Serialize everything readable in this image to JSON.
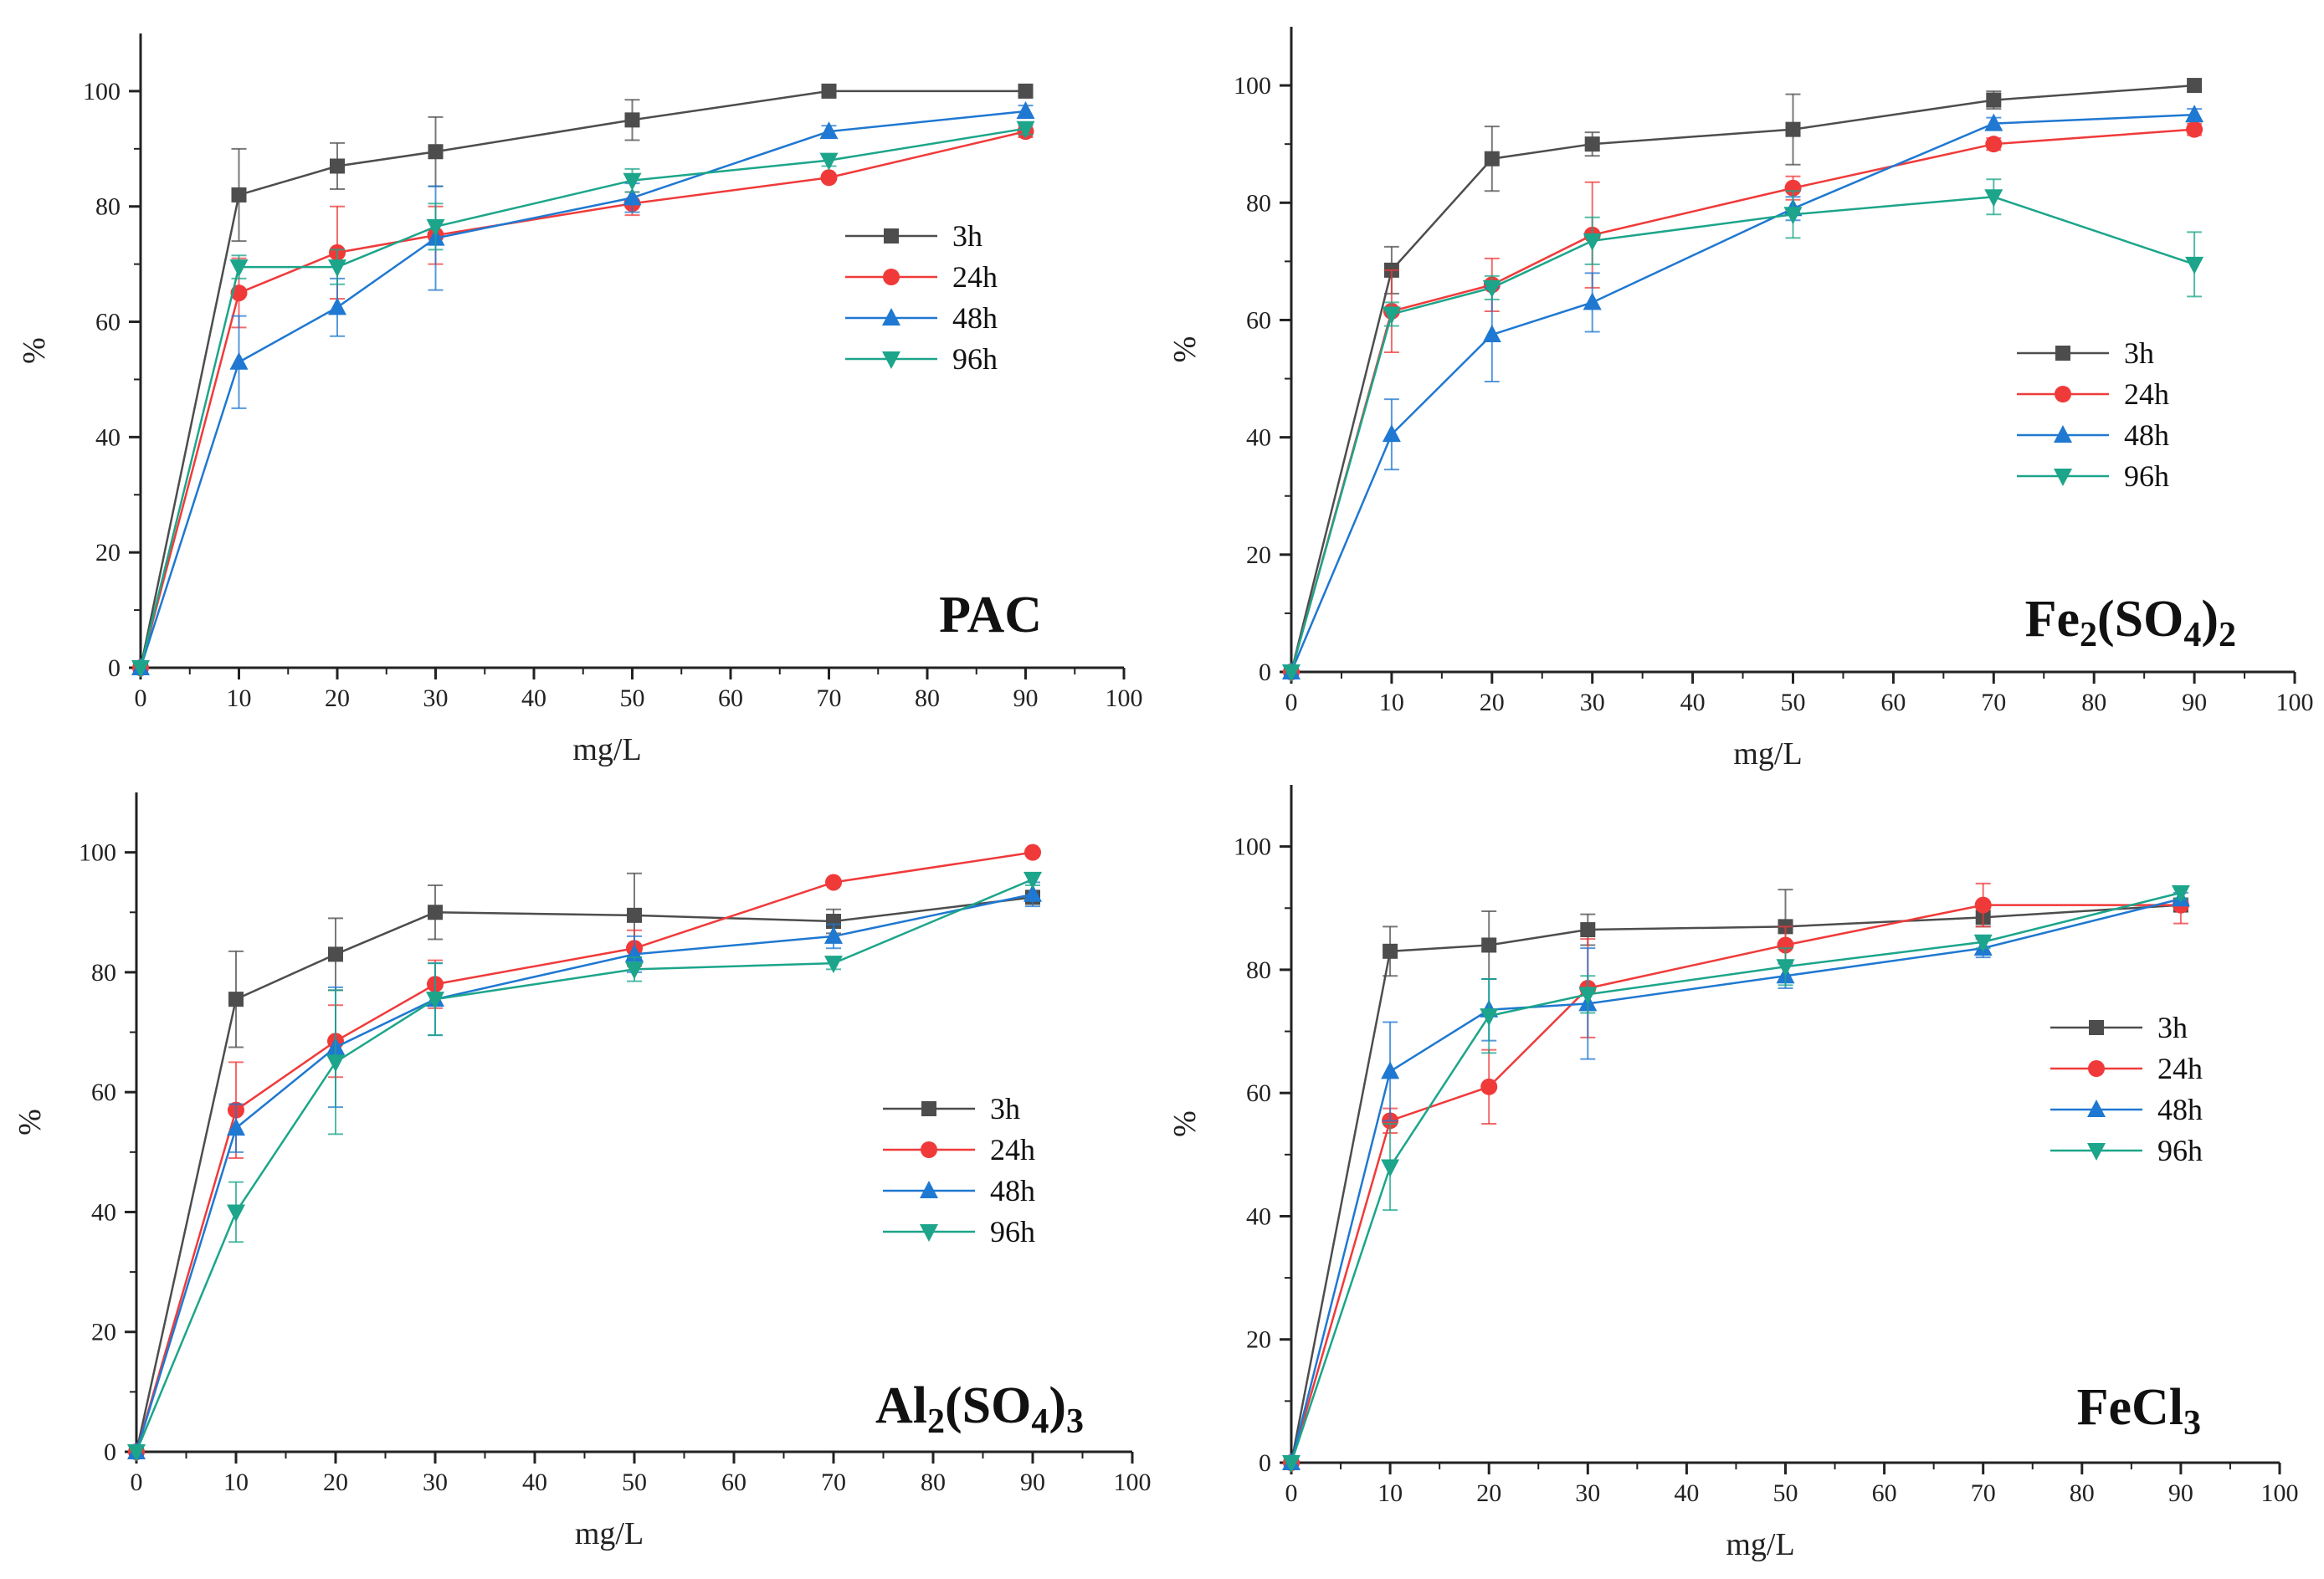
{
  "colors": {
    "3h": "#4d4d4d",
    "24h": "#f03a3a",
    "48h": "#1f78d1",
    "96h": "#1ca58a",
    "axis": "#222222"
  },
  "chart_data": [
    {
      "type": "line",
      "title": "PAC",
      "xlabel": "mg/L",
      "ylabel": "%",
      "xlim": [
        0,
        100
      ],
      "ylim": [
        0,
        110
      ],
      "xticks": [
        0,
        10,
        20,
        30,
        40,
        50,
        60,
        70,
        80,
        90,
        100
      ],
      "yticks": [
        0,
        20,
        40,
        60,
        80,
        100
      ],
      "x": [
        0,
        10,
        20,
        30,
        50,
        70,
        90
      ],
      "legend_position": "middle-right",
      "series": [
        {
          "name": "3h",
          "marker": "square",
          "values": [
            0,
            82,
            87,
            89.5,
            95,
            100,
            100
          ],
          "errors": [
            0,
            8,
            4,
            6,
            3.5,
            0,
            0
          ]
        },
        {
          "name": "24h",
          "marker": "circle",
          "values": [
            0,
            65,
            72,
            75,
            80.5,
            85,
            93
          ],
          "errors": [
            0,
            6,
            8,
            5,
            2,
            0,
            1
          ]
        },
        {
          "name": "48h",
          "marker": "triangle-up",
          "values": [
            0,
            53,
            62.5,
            74.5,
            81.5,
            93,
            96.5
          ],
          "errors": [
            0,
            8,
            5,
            9,
            2.5,
            1,
            1
          ]
        },
        {
          "name": "96h",
          "marker": "triangle-down",
          "values": [
            0,
            69.5,
            69.5,
            76.5,
            84.5,
            88,
            93.5
          ],
          "errors": [
            0,
            2,
            3,
            4,
            2,
            1,
            1
          ]
        }
      ]
    },
    {
      "type": "line",
      "title": "Fe2(SO4)2",
      "title_parts": [
        "Fe",
        "2",
        "(SO",
        "4",
        ")",
        "2"
      ],
      "xlabel": "mg/L",
      "ylabel": "%",
      "xlim": [
        0,
        100
      ],
      "ylim": [
        0,
        110
      ],
      "xticks": [
        0,
        10,
        20,
        30,
        40,
        50,
        60,
        70,
        80,
        90,
        100
      ],
      "yticks": [
        0,
        20,
        40,
        60,
        80,
        100
      ],
      "x": [
        0,
        10,
        20,
        30,
        50,
        70,
        90
      ],
      "legend_position": "right",
      "series": [
        {
          "name": "3h",
          "marker": "square",
          "values": [
            0,
            68.5,
            87.5,
            90,
            92.5,
            97.5,
            100
          ],
          "errors": [
            0,
            4,
            5.5,
            2,
            6,
            1.5,
            0
          ]
        },
        {
          "name": "24h",
          "marker": "circle",
          "values": [
            0,
            61.5,
            66,
            74.5,
            82.5,
            90,
            92.5
          ],
          "errors": [
            0,
            7,
            4.5,
            9,
            2,
            1,
            1
          ]
        },
        {
          "name": "48h",
          "marker": "triangle-up",
          "values": [
            0,
            40.5,
            57.5,
            63,
            79,
            93.5,
            95
          ],
          "errors": [
            0,
            6,
            8,
            5,
            2,
            1,
            1
          ]
        },
        {
          "name": "96h",
          "marker": "triangle-down",
          "values": [
            0,
            61,
            65.5,
            73.5,
            78,
            81,
            69.5
          ],
          "errors": [
            0,
            2,
            2,
            4,
            4,
            3,
            5.5
          ]
        }
      ]
    },
    {
      "type": "line",
      "title": "Al2(SO4)3",
      "title_parts": [
        "Al",
        "2",
        "(SO",
        "4",
        ")",
        "3"
      ],
      "xlabel": "mg/L",
      "ylabel": "%",
      "xlim": [
        0,
        100
      ],
      "ylim": [
        0,
        110
      ],
      "xticks": [
        0,
        10,
        20,
        30,
        40,
        50,
        60,
        70,
        80,
        90,
        100
      ],
      "yticks": [
        0,
        20,
        40,
        60,
        80,
        100
      ],
      "x": [
        0,
        10,
        20,
        30,
        50,
        70,
        90
      ],
      "legend_position": "right",
      "series": [
        {
          "name": "3h",
          "marker": "square",
          "values": [
            0,
            75.5,
            83,
            90,
            89.5,
            88.5,
            92.5
          ],
          "errors": [
            0,
            8,
            6,
            4.5,
            7,
            2,
            1
          ]
        },
        {
          "name": "24h",
          "marker": "circle",
          "values": [
            0,
            57,
            68.5,
            78,
            84,
            95,
            100
          ],
          "errors": [
            0,
            8,
            6,
            4,
            3,
            0,
            0
          ]
        },
        {
          "name": "48h",
          "marker": "triangle-up",
          "values": [
            0,
            54,
            67.5,
            75.5,
            83,
            86,
            93
          ],
          "errors": [
            0,
            4,
            10,
            6,
            3,
            2,
            2
          ]
        },
        {
          "name": "96h",
          "marker": "triangle-down",
          "values": [
            0,
            40,
            65,
            75.5,
            80.5,
            81.5,
            95.5
          ],
          "errors": [
            0,
            5,
            12,
            6,
            2,
            1,
            1
          ]
        }
      ]
    },
    {
      "type": "line",
      "title": "FeCl3",
      "title_parts": [
        "FeCl",
        "3"
      ],
      "xlabel": "mg/L",
      "ylabel": "%",
      "xlim": [
        0,
        100
      ],
      "ylim": [
        0,
        110
      ],
      "xticks": [
        0,
        10,
        20,
        30,
        40,
        50,
        60,
        70,
        80,
        90,
        100
      ],
      "yticks": [
        0,
        20,
        40,
        60,
        80,
        100
      ],
      "x": [
        0,
        10,
        20,
        30,
        50,
        70,
        90
      ],
      "legend_position": "right",
      "series": [
        {
          "name": "3h",
          "marker": "square",
          "values": [
            0,
            83,
            84,
            86.5,
            87,
            88.5,
            90.5
          ],
          "errors": [
            0,
            4,
            5.5,
            2.5,
            6,
            1.5,
            1
          ]
        },
        {
          "name": "24h",
          "marker": "circle",
          "values": [
            0,
            55.5,
            61,
            77,
            84,
            90.5,
            90.5
          ],
          "errors": [
            0,
            2,
            6,
            8,
            3,
            3.5,
            3
          ]
        },
        {
          "name": "48h",
          "marker": "triangle-up",
          "values": [
            0,
            63.5,
            73.5,
            74.5,
            79,
            83.5,
            91.5
          ],
          "errors": [
            0,
            8,
            5,
            9,
            2,
            1.5,
            1
          ]
        },
        {
          "name": "96h",
          "marker": "triangle-down",
          "values": [
            0,
            48,
            72.5,
            76,
            80.5,
            84.5,
            92.5
          ],
          "errors": [
            0,
            7,
            6,
            3,
            3,
            1,
            1
          ]
        }
      ]
    }
  ]
}
